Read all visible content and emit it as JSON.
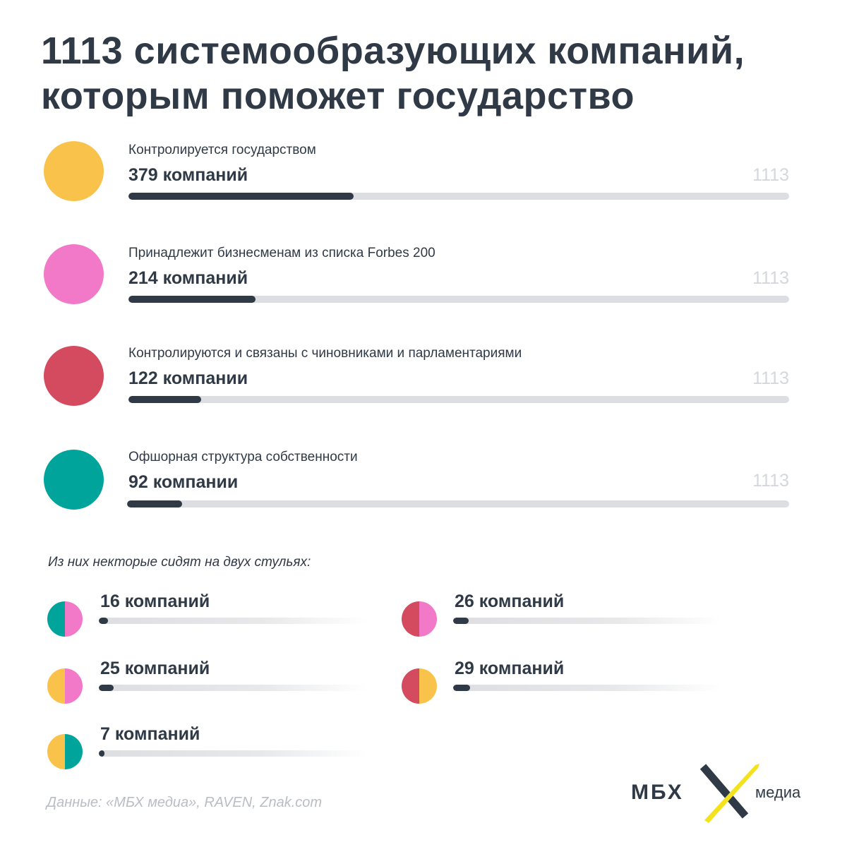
{
  "title": {
    "line1": "1113 системообразующих компаний,",
    "line2": "которым поможет государство"
  },
  "colors": {
    "state": "#f9c24a",
    "forbes": "#f279c8",
    "officials": "#d44a5e",
    "offshore": "#00a49a",
    "bar": "#2f3a46",
    "track": "#dcdee1"
  },
  "chart_data": {
    "type": "bar",
    "total": 1113,
    "categories": [
      "Контролируется государством",
      "Принадлежит бизнесменам из списка Forbes 200",
      "Контролируются и связаны с чиновниками и парламентариями",
      "Офшорная структура собственности"
    ],
    "values": [
      379,
      214,
      122,
      92
    ],
    "overlaps_heading": "Из них некторые сидят на двух стульях:",
    "overlaps": [
      {
        "pair": [
          "offshore",
          "forbes"
        ],
        "value": 16
      },
      {
        "pair": [
          "officials",
          "forbes"
        ],
        "value": 26
      },
      {
        "pair": [
          "state",
          "forbes"
        ],
        "value": 25
      },
      {
        "pair": [
          "officials",
          "state"
        ],
        "value": 29
      },
      {
        "pair": [
          "state",
          "offshore"
        ],
        "value": 7
      }
    ]
  },
  "rows": [
    {
      "key": "state",
      "caption": "Контролируется государством",
      "count_label": "379 компаний",
      "total_label": "1113"
    },
    {
      "key": "forbes",
      "caption": "Принадлежит бизнесменам из списка Forbes 200",
      "count_label": "214 компаний",
      "total_label": "1113"
    },
    {
      "key": "officials",
      "caption": "Контролируются и связаны с чиновниками и парламентариями",
      "count_label": "122 компании",
      "total_label": "1113"
    },
    {
      "key": "offshore",
      "caption": "Офшорная структура собственности",
      "count_label": "92 компании",
      "total_label": "1113"
    }
  ],
  "overlaps_heading": "Из них некторые сидят на двух стульях:",
  "pairs": [
    {
      "left": "offshore",
      "right": "forbes",
      "count_label": "16 компаний"
    },
    {
      "left": "officials",
      "right": "forbes",
      "count_label": "26 компаний"
    },
    {
      "left": "state",
      "right": "forbes",
      "count_label": "25 компаний"
    },
    {
      "left": "officials",
      "right": "state",
      "count_label": "29 компаний"
    },
    {
      "left": "state",
      "right": "offshore",
      "count_label": "7 компаний"
    }
  ],
  "source": "Данные: «МБХ медиа», RAVEN, Znak.com",
  "logo": {
    "name": "МБХ",
    "sub": "медиа"
  }
}
